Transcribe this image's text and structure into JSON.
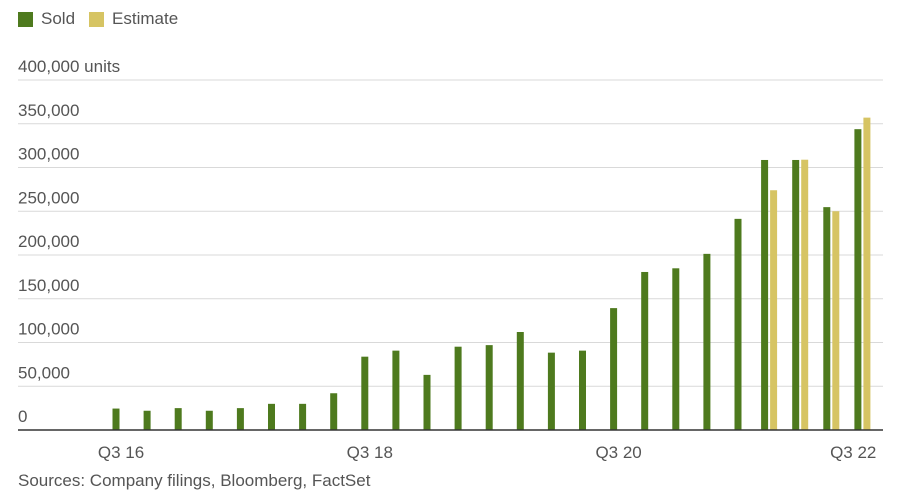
{
  "legend": [
    {
      "name": "Sold",
      "color": "#4e7a1e"
    },
    {
      "name": "Estimate",
      "color": "#d6c463"
    }
  ],
  "source": "Sources: Company filings, Bloomberg, FactSet",
  "chart_data": {
    "type": "bar",
    "title": "",
    "xlabel": "",
    "ylabel": "",
    "ylim": [
      0,
      400000
    ],
    "yticks": [
      {
        "value": 0,
        "label": "0"
      },
      {
        "value": 50000,
        "label": "50,000"
      },
      {
        "value": 100000,
        "label": "100,000"
      },
      {
        "value": 150000,
        "label": "150,000"
      },
      {
        "value": 200000,
        "label": "200,000"
      },
      {
        "value": 250000,
        "label": "250,000"
      },
      {
        "value": 300000,
        "label": "300,000"
      },
      {
        "value": 350000,
        "label": "350,000"
      },
      {
        "value": 400000,
        "label": "400,000 units"
      }
    ],
    "xtick_labels": [
      {
        "index": 0,
        "label": "Q3 16"
      },
      {
        "index": 8,
        "label": "Q3 18"
      },
      {
        "index": 16,
        "label": "Q3 20"
      },
      {
        "index": 24,
        "label": "Q3 22"
      }
    ],
    "grid": true,
    "legend_position": "top-left",
    "series": [
      {
        "name": "Sold",
        "color": "#4e7a1e",
        "values": [
          24500,
          22000,
          25000,
          22000,
          25000,
          29900,
          29900,
          42000,
          83800,
          90700,
          63000,
          95200,
          97000,
          112000,
          88400,
          90700,
          139300,
          180600,
          184800,
          201300,
          241300,
          308600,
          308600,
          254700,
          343800
        ]
      },
      {
        "name": "Estimate",
        "color": "#d6c463",
        "values": [
          null,
          null,
          null,
          null,
          null,
          null,
          null,
          null,
          null,
          null,
          null,
          null,
          null,
          null,
          null,
          null,
          null,
          null,
          null,
          null,
          null,
          274000,
          308900,
          250000,
          357000
        ]
      }
    ]
  }
}
